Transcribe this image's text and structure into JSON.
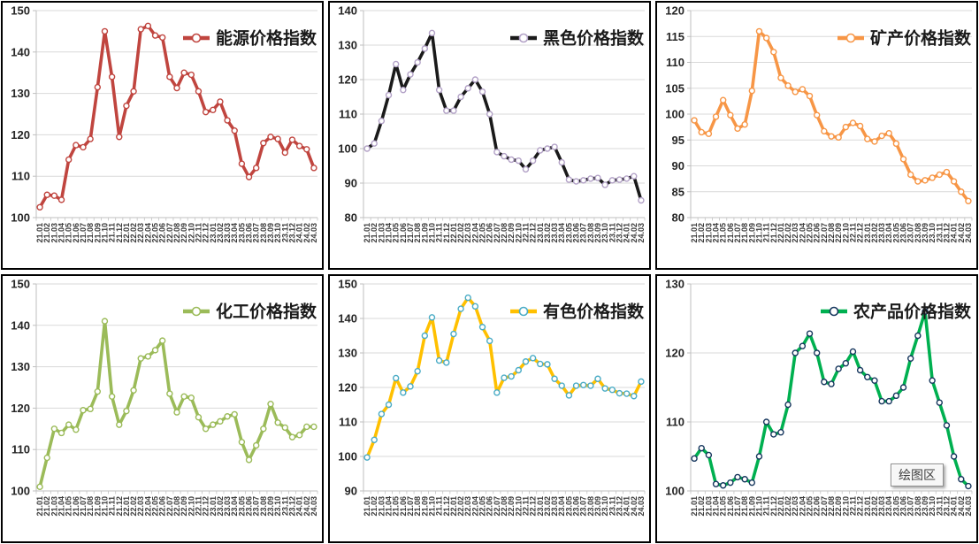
{
  "tooltip": {
    "label": "绘图区"
  },
  "chart_data": {
    "type": "line",
    "layout": {
      "grid": true,
      "grid_color": "#D9D9D9",
      "axis_color": "#BFBFBF",
      "legend_position": "top-right",
      "x_label_rotation": -90
    },
    "shared_x_categories": [
      "21.01",
      "21.02",
      "21.03",
      "21.04",
      "21.05",
      "21.06",
      "21.07",
      "21.08",
      "21.09",
      "21.10",
      "21.11",
      "21.12",
      "22.01",
      "22.02",
      "22.03",
      "22.04",
      "22.05",
      "22.06",
      "22.07",
      "22.08",
      "22.09",
      "22.10",
      "22.11",
      "22.12",
      "23.01",
      "23.02",
      "23.03",
      "23.04",
      "23.05",
      "23.06",
      "23.07",
      "23.08",
      "23.09",
      "23.10",
      "23.11",
      "23.12",
      "24.01",
      "24.02",
      "24.03"
    ],
    "charts": [
      {
        "id": "energy",
        "legend": "能源价格指数",
        "line_color": "#C0453F",
        "marker_color": "#C0453F",
        "ylim": [
          100,
          150
        ],
        "yticks": [
          100,
          110,
          120,
          130,
          140,
          150
        ],
        "values": [
          102.5,
          105.5,
          105.3,
          104.3,
          114,
          117.5,
          117,
          119,
          131.5,
          145,
          134,
          119.5,
          127,
          130.5,
          145.5,
          146.3,
          144,
          143.5,
          134,
          131.3,
          135,
          134.5,
          130.5,
          125.5,
          126,
          128,
          123.5,
          121,
          113,
          109.8,
          112,
          118,
          119.5,
          119,
          115.7,
          118.8,
          117.3,
          116.5,
          112
        ]
      },
      {
        "id": "ferrous",
        "legend": "黑色价格指数",
        "line_color": "#1A1A1A",
        "marker_color": "#B3A2C7",
        "ylim": [
          80,
          140
        ],
        "yticks": [
          80,
          90,
          100,
          110,
          120,
          130,
          140
        ],
        "values": [
          100,
          101.5,
          108,
          115.5,
          124.5,
          117,
          121.5,
          125,
          129,
          133.5,
          117,
          111,
          111,
          115,
          117.5,
          120,
          116.5,
          110,
          99,
          97.8,
          96.8,
          96.5,
          94,
          96.5,
          99.5,
          100,
          100.5,
          96,
          91,
          90.5,
          90.8,
          91.3,
          91.5,
          89.5,
          90.8,
          91,
          91.3,
          92,
          85
        ]
      },
      {
        "id": "mineral",
        "legend": "矿产价格指数",
        "line_color": "#F79646",
        "marker_color": "#F79646",
        "ylim": [
          80,
          120
        ],
        "yticks": [
          80,
          85,
          90,
          95,
          100,
          105,
          110,
          115,
          120
        ],
        "values": [
          98.8,
          96.5,
          96.2,
          99.5,
          102.7,
          99.8,
          97.2,
          98,
          104.5,
          116,
          114.7,
          112,
          107,
          105.5,
          104.3,
          104.8,
          103.5,
          99.8,
          96.7,
          95.7,
          95.5,
          97.5,
          98.3,
          97.7,
          95.2,
          94.7,
          95.8,
          96.3,
          94.3,
          91.3,
          88.3,
          87,
          87.2,
          87.7,
          88.3,
          88.8,
          87,
          85,
          83.2
        ]
      },
      {
        "id": "chemical",
        "legend": "化工价格指数",
        "line_color": "#9BBB59",
        "marker_color": "#9BBB59",
        "ylim": [
          100,
          150
        ],
        "yticks": [
          100,
          110,
          120,
          130,
          140,
          150
        ],
        "values": [
          101,
          108,
          115,
          114,
          116,
          114.8,
          119.5,
          119.8,
          124,
          141,
          122.8,
          116,
          119.3,
          124.3,
          132,
          132.5,
          134,
          136.3,
          123.5,
          119,
          122.8,
          122.5,
          117.8,
          115,
          116,
          116.8,
          118,
          118.5,
          111.8,
          107.5,
          111,
          115,
          121,
          116.5,
          115.3,
          113,
          113.5,
          115.5,
          115.5
        ]
      },
      {
        "id": "nonferrous",
        "legend": "有色价格指数",
        "line_color": "#FFC000",
        "marker_color": "#4BACC6",
        "ylim": [
          90,
          150
        ],
        "yticks": [
          90,
          100,
          110,
          120,
          130,
          140,
          150
        ],
        "values": [
          99.7,
          104.8,
          112.3,
          115,
          122.7,
          118.5,
          120.3,
          124.7,
          135,
          140.3,
          127.8,
          127.2,
          135.5,
          142.8,
          146,
          143.5,
          137.5,
          133.5,
          118.5,
          122.8,
          123.2,
          125,
          127.5,
          128.5,
          126.8,
          126.7,
          122.5,
          120.5,
          117.7,
          120.5,
          120.7,
          120.5,
          122.5,
          119.7,
          119.3,
          118.3,
          118.2,
          117.5,
          121.7
        ]
      },
      {
        "id": "agricultural",
        "legend": "农产品价格指数",
        "line_color": "#00B050",
        "marker_color": "#17375E",
        "ylim": [
          100,
          130
        ],
        "yticks": [
          100,
          110,
          120,
          130
        ],
        "values": [
          104.7,
          106.2,
          105.2,
          101,
          100.8,
          101.2,
          102,
          101.7,
          101.2,
          105,
          110,
          108.2,
          108.5,
          112.5,
          120,
          121,
          122.8,
          120,
          115.8,
          115.5,
          117.7,
          118.5,
          120.2,
          117.5,
          116.5,
          116,
          113,
          113,
          113.8,
          115,
          119.2,
          122.5,
          126,
          116,
          112.8,
          109.5,
          105,
          101.7,
          100.7
        ]
      }
    ]
  }
}
